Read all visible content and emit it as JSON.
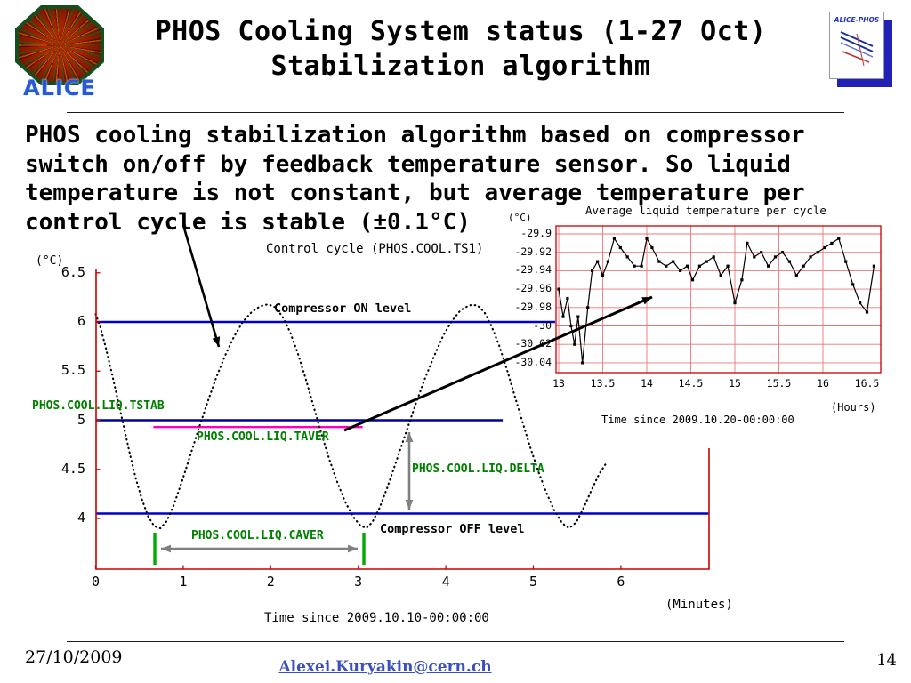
{
  "slide": {
    "title_line1": "PHOS Cooling System status (1-27 Oct)",
    "title_line2": "Stabilization algorithm",
    "body_lines": [
      "PHOS cooling stabilization algorithm based on compressor",
      "switch on/off by feedback temperature sensor. So liquid",
      "temperature is not constant, but average temperature per",
      "control cycle is stable (±0.1°C)"
    ],
    "footer": {
      "date": "27/10/2009",
      "email": "Alexei.Kuryakin@cern.ch",
      "page_number": "14"
    }
  },
  "logos": {
    "alice_text": "ALICE",
    "alice_phos_text": "ALICE-PHOS"
  },
  "colors": {
    "axis_red": "#cc0000",
    "grid_red": "#e87878",
    "level_blue": "#0000cc",
    "tstab_blue": "#000099",
    "taver_magenta": "#ff00bb",
    "label_green": "#008000",
    "bracket_green": "#00aa00",
    "arrow_gray": "#808080",
    "series_black": "#000000",
    "link_blue": "#3a4fc0"
  },
  "chart_data": [
    {
      "type": "line",
      "title": "Control cycle (PHOS.COOL.TS1)",
      "ylabel": "(°C)",
      "xlabel": "(Minutes)",
      "x_caption": "Time since 2009.10.10-00:00:00",
      "xlim": [
        0,
        7
      ],
      "ylim": [
        3.5,
        6.55
      ],
      "x_ticks": [
        0,
        1,
        2,
        3,
        4,
        5,
        6
      ],
      "y_ticks": [
        6.5,
        6,
        5.5,
        5,
        4.5,
        4
      ],
      "grid": false,
      "style": "dotted",
      "reference_lines": [
        {
          "key": "on",
          "label": "Compressor ON level",
          "value": 6.0,
          "color": "#0000cc",
          "x_range": [
            0,
            7
          ],
          "width": 2.6
        },
        {
          "key": "tstab",
          "label": "PHOS.COOL.LIQ.TSTAB",
          "value": 5.0,
          "color": "#000099",
          "x_range": [
            0,
            4.65
          ],
          "width": 2.6
        },
        {
          "key": "taver",
          "label": "PHOS.COOL.LIQ.TAVER",
          "value": 4.93,
          "color": "#ff00bb",
          "x_range": [
            0.66,
            3.05
          ],
          "width": 2.4
        },
        {
          "key": "off",
          "label": "Compressor OFF level",
          "value": 4.05,
          "color": "#0000cc",
          "x_range": [
            0,
            7
          ],
          "width": 2.6
        }
      ],
      "annotations": {
        "delta": "PHOS.COOL.LIQ.DELTA",
        "caver": "PHOS.COOL.LIQ.CAVER"
      },
      "series": [
        {
          "name": "PHOS.COOL.TS1",
          "points": [
            [
              0,
              6.08
            ],
            [
              0.05,
              5.96
            ],
            [
              0.11,
              5.76
            ],
            [
              0.18,
              5.5
            ],
            [
              0.25,
              5.22
            ],
            [
              0.32,
              4.94
            ],
            [
              0.39,
              4.66
            ],
            [
              0.46,
              4.4
            ],
            [
              0.53,
              4.19
            ],
            [
              0.6,
              4.02
            ],
            [
              0.67,
              3.92
            ],
            [
              0.74,
              3.9
            ],
            [
              0.81,
              3.97
            ],
            [
              0.89,
              4.13
            ],
            [
              0.98,
              4.36
            ],
            [
              1.08,
              4.64
            ],
            [
              1.18,
              4.92
            ],
            [
              1.28,
              5.19
            ],
            [
              1.38,
              5.44
            ],
            [
              1.48,
              5.66
            ],
            [
              1.58,
              5.85
            ],
            [
              1.68,
              6.0
            ],
            [
              1.78,
              6.1
            ],
            [
              1.88,
              6.16
            ],
            [
              1.97,
              6.18
            ],
            [
              2.05,
              6.15
            ],
            [
              2.13,
              6.06
            ],
            [
              2.22,
              5.9
            ],
            [
              2.31,
              5.68
            ],
            [
              2.4,
              5.42
            ],
            [
              2.49,
              5.14
            ],
            [
              2.58,
              4.86
            ],
            [
              2.67,
              4.6
            ],
            [
              2.76,
              4.37
            ],
            [
              2.85,
              4.17
            ],
            [
              2.94,
              4.02
            ],
            [
              3.02,
              3.93
            ],
            [
              3.09,
              3.9
            ],
            [
              3.16,
              3.96
            ],
            [
              3.24,
              4.1
            ],
            [
              3.33,
              4.31
            ],
            [
              3.43,
              4.57
            ],
            [
              3.54,
              4.86
            ],
            [
              3.65,
              5.15
            ],
            [
              3.76,
              5.42
            ],
            [
              3.87,
              5.66
            ],
            [
              3.97,
              5.86
            ],
            [
              4.07,
              6.01
            ],
            [
              4.17,
              6.12
            ],
            [
              4.27,
              6.17
            ],
            [
              4.36,
              6.17
            ],
            [
              4.44,
              6.1
            ],
            [
              4.52,
              5.96
            ],
            [
              4.61,
              5.76
            ],
            [
              4.7,
              5.51
            ],
            [
              4.79,
              5.24
            ],
            [
              4.88,
              4.97
            ],
            [
              4.97,
              4.71
            ],
            [
              5.06,
              4.47
            ],
            [
              5.15,
              4.26
            ],
            [
              5.24,
              4.08
            ],
            [
              5.33,
              3.95
            ],
            [
              5.41,
              3.9
            ],
            [
              5.49,
              3.96
            ],
            [
              5.57,
              4.1
            ],
            [
              5.66,
              4.28
            ],
            [
              5.75,
              4.45
            ],
            [
              5.83,
              4.56
            ]
          ]
        }
      ]
    },
    {
      "type": "line",
      "title": "Average liquid temperature per cycle",
      "ylabel": "(°C)",
      "xlabel": "(Hours)",
      "x_caption": "Time since 2009.10.20-00:00:00",
      "xlim": [
        12.98,
        16.67
      ],
      "ylim": [
        -30.052,
        -29.892
      ],
      "x_ticks": [
        13,
        13.5,
        14,
        14.5,
        15,
        15.5,
        16,
        16.5
      ],
      "y_ticks": [
        -29.9,
        -29.92,
        -29.94,
        -29.96,
        -29.98,
        -30,
        -30.02,
        -30.04
      ],
      "grid": true,
      "style": "line+markers",
      "series": [
        {
          "name": "average liquid temperature",
          "points": [
            [
              13.0,
              -29.96
            ],
            [
              13.05,
              -29.99
            ],
            [
              13.1,
              -29.97
            ],
            [
              13.14,
              -30.0
            ],
            [
              13.18,
              -30.02
            ],
            [
              13.22,
              -29.99
            ],
            [
              13.27,
              -30.04
            ],
            [
              13.33,
              -29.98
            ],
            [
              13.38,
              -29.94
            ],
            [
              13.44,
              -29.93
            ],
            [
              13.5,
              -29.945
            ],
            [
              13.56,
              -29.93
            ],
            [
              13.63,
              -29.905
            ],
            [
              13.7,
              -29.915
            ],
            [
              13.78,
              -29.925
            ],
            [
              13.86,
              -29.935
            ],
            [
              13.94,
              -29.935
            ],
            [
              14.0,
              -29.905
            ],
            [
              14.06,
              -29.915
            ],
            [
              14.14,
              -29.93
            ],
            [
              14.22,
              -29.935
            ],
            [
              14.3,
              -29.93
            ],
            [
              14.38,
              -29.94
            ],
            [
              14.46,
              -29.935
            ],
            [
              14.52,
              -29.95
            ],
            [
              14.6,
              -29.935
            ],
            [
              14.68,
              -29.93
            ],
            [
              14.76,
              -29.925
            ],
            [
              14.84,
              -29.945
            ],
            [
              14.92,
              -29.935
            ],
            [
              15.0,
              -29.975
            ],
            [
              15.08,
              -29.95
            ],
            [
              15.14,
              -29.91
            ],
            [
              15.22,
              -29.925
            ],
            [
              15.3,
              -29.92
            ],
            [
              15.38,
              -29.935
            ],
            [
              15.46,
              -29.925
            ],
            [
              15.54,
              -29.92
            ],
            [
              15.62,
              -29.93
            ],
            [
              15.7,
              -29.945
            ],
            [
              15.78,
              -29.935
            ],
            [
              15.86,
              -29.925
            ],
            [
              15.94,
              -29.92
            ],
            [
              16.02,
              -29.915
            ],
            [
              16.1,
              -29.91
            ],
            [
              16.18,
              -29.905
            ],
            [
              16.26,
              -29.93
            ],
            [
              16.34,
              -29.955
            ],
            [
              16.42,
              -29.975
            ],
            [
              16.5,
              -29.985
            ],
            [
              16.58,
              -29.935
            ]
          ]
        }
      ]
    }
  ]
}
